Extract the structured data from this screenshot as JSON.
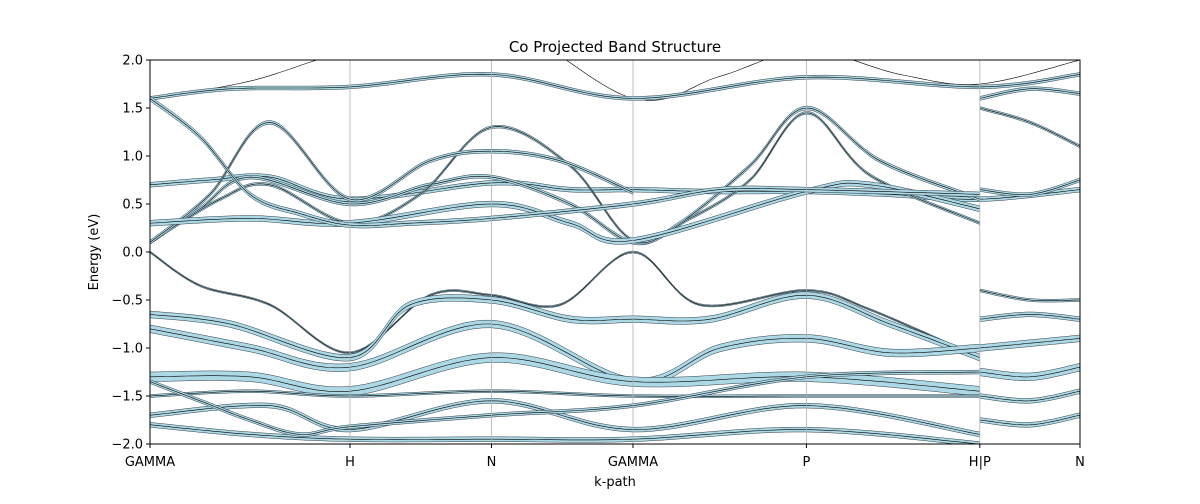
{
  "chart_data": {
    "type": "line",
    "title": "Co Projected Band Structure",
    "xlabel": "k-path",
    "ylabel": "Energy (eV)",
    "ylim": [
      -2.0,
      2.0
    ],
    "xlim": [
      0,
      1
    ],
    "yticks": [
      "−2.0",
      "−1.5",
      "−1.0",
      "−0.5",
      "0.0",
      "0.5",
      "1.0",
      "1.5",
      "2.0"
    ],
    "ytick_values": [
      -2.0,
      -1.5,
      -1.0,
      -0.5,
      0.0,
      0.5,
      1.0,
      1.5,
      2.0
    ],
    "kpoints": [
      {
        "label": "GAMMA",
        "x": 0.0
      },
      {
        "label": "H",
        "x": 0.2
      },
      {
        "label": "N",
        "x": 0.3415
      },
      {
        "label": "GAMMA",
        "x": 0.483
      },
      {
        "label": "P",
        "x": 0.6564
      },
      {
        "label": "H|P",
        "x": 0.8298
      },
      {
        "label": "N",
        "x": 0.93
      }
    ],
    "grid": "vertical at k-points",
    "fill_color": "#add8e6",
    "line_color": "#000000",
    "bands": [
      {
        "x": [
          0,
          0.1,
          0.2,
          0.3415,
          0.483,
          0.57,
          0.6564,
          0.75,
          0.8298,
          0.93
        ],
        "y": [
          1.6,
          1.78,
          2.1,
          2.4,
          1.6,
          1.83,
          2.1,
          1.85,
          1.75,
          2.0
        ],
        "w": 0.0
      },
      {
        "x": [
          0,
          0.08,
          0.2,
          0.3415,
          0.483,
          0.6564,
          0.8298,
          0.93
        ],
        "y": [
          1.6,
          1.7,
          1.72,
          1.85,
          1.6,
          1.82,
          1.72,
          1.85
        ],
        "w": 0.04
      },
      {
        "x": [
          0,
          0.06,
          0.12,
          0.2,
          0.3415,
          0.42,
          0.483,
          0.56,
          0.6564,
          0.74,
          0.8298,
          0.93
        ],
        "y": [
          0.7,
          0.75,
          0.78,
          0.55,
          0.72,
          0.65,
          0.65,
          0.63,
          0.63,
          0.6,
          0.55,
          0.65
        ],
        "w": 0.05
      },
      {
        "x": [
          0,
          0.05,
          0.1,
          0.2,
          0.28,
          0.3415,
          0.42,
          0.483,
          0.53,
          0.6,
          0.6564,
          0.73,
          0.8298
        ],
        "y": [
          0.1,
          0.45,
          0.78,
          0.5,
          0.7,
          0.78,
          0.5,
          0.1,
          0.3,
          0.9,
          1.5,
          0.95,
          0.55
        ],
        "w": 0.04
      },
      {
        "x": [
          0,
          0.07,
          0.12,
          0.2,
          0.27,
          0.3415,
          0.42,
          0.483,
          0.54,
          0.6,
          0.6564,
          0.72,
          0.8298
        ],
        "y": [
          0.1,
          0.55,
          0.7,
          0.3,
          0.6,
          1.3,
          0.9,
          0.12,
          0.35,
          0.75,
          1.45,
          0.8,
          0.3
        ],
        "w": 0.03
      },
      {
        "x": [
          0,
          0.06,
          0.12,
          0.2,
          0.28,
          0.3415,
          0.41,
          0.483
        ],
        "y": [
          0.1,
          0.6,
          1.35,
          0.55,
          0.95,
          1.05,
          0.95,
          0.62
        ],
        "w": 0.04
      },
      {
        "x": [
          0,
          0.1,
          0.2,
          0.3415,
          0.42,
          0.483,
          0.6564,
          0.72,
          0.8298
        ],
        "y": [
          0.3,
          0.35,
          0.3,
          0.5,
          0.3,
          0.12,
          0.63,
          0.7,
          0.45
        ],
        "w": 0.06
      },
      {
        "x": [
          0,
          0.05,
          0.1,
          0.15,
          0.2,
          0.26,
          0.3415,
          0.483,
          0.57,
          0.6564,
          0.8298
        ],
        "y": [
          1.6,
          1.2,
          0.6,
          0.4,
          0.28,
          0.3,
          0.35,
          0.5,
          0.65,
          0.65,
          0.6
        ],
        "w": 0.05
      },
      {
        "x": [
          0,
          0.05,
          0.12,
          0.2,
          0.28,
          0.3415,
          0.41,
          0.483,
          0.55,
          0.6564,
          0.72,
          0.8298
        ],
        "y": [
          0.0,
          -0.35,
          -0.55,
          -1.05,
          -0.45,
          -0.45,
          -0.55,
          0.0,
          -0.55,
          -0.4,
          -0.6,
          -1.1
        ],
        "w": 0.02
      },
      {
        "x": [
          0,
          0.08,
          0.2,
          0.26,
          0.3415,
          0.42,
          0.483,
          0.56,
          0.6564,
          0.74,
          0.8298
        ],
        "y": [
          -0.65,
          -0.75,
          -1.1,
          -0.55,
          -0.5,
          -0.7,
          -0.7,
          -0.7,
          -0.45,
          -0.75,
          -1.1
        ],
        "w": 0.07
      },
      {
        "x": [
          0,
          0.1,
          0.2,
          0.3415,
          0.483,
          0.57,
          0.6564,
          0.74,
          0.8298
        ],
        "y": [
          -0.8,
          -1.0,
          -1.2,
          -0.75,
          -1.35,
          -1.0,
          -0.9,
          -1.05,
          -1.0
        ],
        "w": 0.08
      },
      {
        "x": [
          0,
          0.1,
          0.2,
          0.3415,
          0.483,
          0.6564,
          0.8298
        ],
        "y": [
          -1.3,
          -1.3,
          -1.45,
          -1.1,
          -1.35,
          -1.3,
          -1.45
        ],
        "w": 0.1
      },
      {
        "x": [
          0,
          0.1,
          0.2,
          0.3415,
          0.483,
          0.6564,
          0.8298
        ],
        "y": [
          -1.5,
          -1.45,
          -1.5,
          -1.45,
          -1.5,
          -1.5,
          -1.5
        ],
        "w": 0.03
      },
      {
        "x": [
          0,
          0.12,
          0.2,
          0.3415,
          0.483,
          0.6564,
          0.8298
        ],
        "y": [
          -1.7,
          -1.6,
          -1.85,
          -1.55,
          -1.85,
          -1.6,
          -1.9
        ],
        "w": 0.05
      },
      {
        "x": [
          0,
          0.1,
          0.2,
          0.3415,
          0.483,
          0.6564,
          0.8298
        ],
        "y": [
          -1.8,
          -1.9,
          -1.95,
          -1.95,
          -1.95,
          -1.85,
          -2.0
        ],
        "w": 0.05
      },
      {
        "x": [
          0,
          0.05,
          0.1,
          0.15,
          0.2,
          0.3415,
          0.483,
          0.6564,
          0.8298
        ],
        "y": [
          -1.35,
          -1.55,
          -1.75,
          -1.9,
          -1.82,
          -1.7,
          -1.6,
          -1.3,
          -1.25
        ],
        "w": 0.04
      },
      {
        "x": [
          0.8298,
          0.88,
          0.93
        ],
        "y": [
          1.6,
          1.7,
          1.65
        ],
        "w": 0.04
      },
      {
        "x": [
          0.8298,
          0.88,
          0.93
        ],
        "y": [
          1.5,
          1.35,
          1.1
        ],
        "w": 0.03
      },
      {
        "x": [
          0.8298,
          0.88,
          0.93
        ],
        "y": [
          0.65,
          0.6,
          0.75
        ],
        "w": 0.04
      },
      {
        "x": [
          0.8298,
          0.88,
          0.93
        ],
        "y": [
          -0.4,
          -0.5,
          -0.5
        ],
        "w": 0.03
      },
      {
        "x": [
          0.8298,
          0.88,
          0.93
        ],
        "y": [
          -0.7,
          -0.65,
          -0.7
        ],
        "w": 0.05
      },
      {
        "x": [
          0.8298,
          0.88,
          0.93
        ],
        "y": [
          -1.0,
          -0.95,
          -0.9
        ],
        "w": 0.07
      },
      {
        "x": [
          0.8298,
          0.88,
          0.93
        ],
        "y": [
          -1.25,
          -1.3,
          -1.2
        ],
        "w": 0.08
      },
      {
        "x": [
          0.8298,
          0.88,
          0.93
        ],
        "y": [
          -1.5,
          -1.55,
          -1.45
        ],
        "w": 0.05
      },
      {
        "x": [
          0.8298,
          0.88,
          0.93
        ],
        "y": [
          -1.75,
          -1.8,
          -1.7
        ],
        "w": 0.05
      }
    ]
  }
}
